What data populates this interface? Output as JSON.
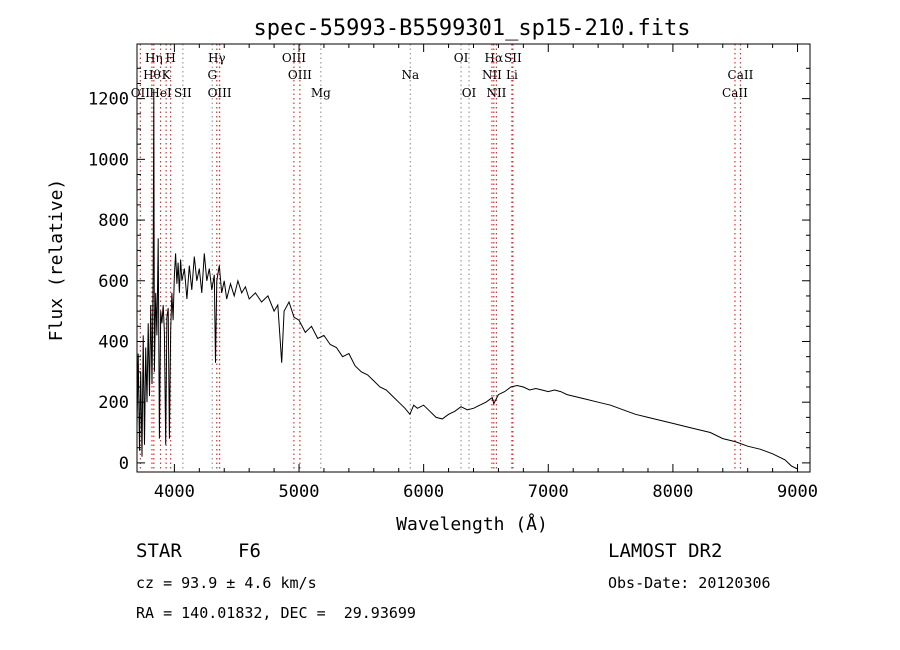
{
  "chart_data": {
    "type": "line",
    "title": "spec-55993-B5599301_sp15-210.fits",
    "xlabel": "Wavelength (Å)",
    "ylabel": "Flux (relative)",
    "xlim": [
      3700,
      9100
    ],
    "ylim": [
      -30,
      1380
    ],
    "x_ticks": [
      4000,
      5000,
      6000,
      7000,
      8000,
      9000
    ],
    "y_ticks": [
      0,
      200,
      400,
      600,
      800,
      1000,
      1200
    ],
    "grid": false,
    "series": [
      {
        "values": [
          {
            "x": 3700,
            "y": 120
          },
          {
            "x": 3710,
            "y": 360
          },
          {
            "x": 3720,
            "y": 40
          },
          {
            "x": 3730,
            "y": 300
          },
          {
            "x": 3740,
            "y": 20
          },
          {
            "x": 3750,
            "y": 420
          },
          {
            "x": 3760,
            "y": 60
          },
          {
            "x": 3770,
            "y": 380
          },
          {
            "x": 3780,
            "y": 200
          },
          {
            "x": 3790,
            "y": 460
          },
          {
            "x": 3800,
            "y": 220
          },
          {
            "x": 3810,
            "y": 520
          },
          {
            "x": 3820,
            "y": 260
          },
          {
            "x": 3830,
            "y": 640
          },
          {
            "x": 3835,
            "y": 1230
          },
          {
            "x": 3840,
            "y": 300
          },
          {
            "x": 3850,
            "y": 560
          },
          {
            "x": 3860,
            "y": 420
          },
          {
            "x": 3870,
            "y": 740
          },
          {
            "x": 3880,
            "y": 80
          },
          {
            "x": 3890,
            "y": 500
          },
          {
            "x": 3900,
            "y": 460
          },
          {
            "x": 3910,
            "y": 520
          },
          {
            "x": 3920,
            "y": 430
          },
          {
            "x": 3930,
            "y": 60
          },
          {
            "x": 3940,
            "y": 480
          },
          {
            "x": 3950,
            "y": 510
          },
          {
            "x": 3960,
            "y": 80
          },
          {
            "x": 3970,
            "y": 440
          },
          {
            "x": 3980,
            "y": 560
          },
          {
            "x": 3990,
            "y": 470
          },
          {
            "x": 4000,
            "y": 620
          },
          {
            "x": 4010,
            "y": 690
          },
          {
            "x": 4020,
            "y": 590
          },
          {
            "x": 4030,
            "y": 660
          },
          {
            "x": 4040,
            "y": 560
          },
          {
            "x": 4050,
            "y": 670
          },
          {
            "x": 4060,
            "y": 600
          },
          {
            "x": 4080,
            "y": 640
          },
          {
            "x": 4100,
            "y": 540
          },
          {
            "x": 4120,
            "y": 650
          },
          {
            "x": 4140,
            "y": 570
          },
          {
            "x": 4160,
            "y": 680
          },
          {
            "x": 4180,
            "y": 600
          },
          {
            "x": 4200,
            "y": 640
          },
          {
            "x": 4220,
            "y": 560
          },
          {
            "x": 4240,
            "y": 690
          },
          {
            "x": 4260,
            "y": 600
          },
          {
            "x": 4280,
            "y": 640
          },
          {
            "x": 4300,
            "y": 570
          },
          {
            "x": 4320,
            "y": 620
          },
          {
            "x": 4330,
            "y": 330
          },
          {
            "x": 4340,
            "y": 600
          },
          {
            "x": 4360,
            "y": 650
          },
          {
            "x": 4380,
            "y": 560
          },
          {
            "x": 4400,
            "y": 600
          },
          {
            "x": 4420,
            "y": 540
          },
          {
            "x": 4450,
            "y": 590
          },
          {
            "x": 4480,
            "y": 550
          },
          {
            "x": 4510,
            "y": 600
          },
          {
            "x": 4540,
            "y": 560
          },
          {
            "x": 4570,
            "y": 580
          },
          {
            "x": 4600,
            "y": 540
          },
          {
            "x": 4650,
            "y": 560
          },
          {
            "x": 4700,
            "y": 530
          },
          {
            "x": 4750,
            "y": 550
          },
          {
            "x": 4800,
            "y": 500
          },
          {
            "x": 4830,
            "y": 520
          },
          {
            "x": 4861,
            "y": 330
          },
          {
            "x": 4880,
            "y": 500
          },
          {
            "x": 4920,
            "y": 530
          },
          {
            "x": 4960,
            "y": 480
          },
          {
            "x": 5000,
            "y": 470
          },
          {
            "x": 5050,
            "y": 430
          },
          {
            "x": 5100,
            "y": 450
          },
          {
            "x": 5150,
            "y": 410
          },
          {
            "x": 5200,
            "y": 420
          },
          {
            "x": 5250,
            "y": 390
          },
          {
            "x": 5300,
            "y": 380
          },
          {
            "x": 5350,
            "y": 350
          },
          {
            "x": 5400,
            "y": 360
          },
          {
            "x": 5450,
            "y": 320
          },
          {
            "x": 5500,
            "y": 300
          },
          {
            "x": 5550,
            "y": 290
          },
          {
            "x": 5600,
            "y": 270
          },
          {
            "x": 5650,
            "y": 250
          },
          {
            "x": 5700,
            "y": 240
          },
          {
            "x": 5750,
            "y": 220
          },
          {
            "x": 5800,
            "y": 200
          },
          {
            "x": 5850,
            "y": 180
          },
          {
            "x": 5890,
            "y": 160
          },
          {
            "x": 5920,
            "y": 190
          },
          {
            "x": 5950,
            "y": 180
          },
          {
            "x": 6000,
            "y": 190
          },
          {
            "x": 6050,
            "y": 170
          },
          {
            "x": 6100,
            "y": 150
          },
          {
            "x": 6150,
            "y": 145
          },
          {
            "x": 6200,
            "y": 160
          },
          {
            "x": 6250,
            "y": 170
          },
          {
            "x": 6300,
            "y": 185
          },
          {
            "x": 6350,
            "y": 175
          },
          {
            "x": 6400,
            "y": 180
          },
          {
            "x": 6450,
            "y": 190
          },
          {
            "x": 6500,
            "y": 200
          },
          {
            "x": 6550,
            "y": 215
          },
          {
            "x": 6563,
            "y": 195
          },
          {
            "x": 6600,
            "y": 225
          },
          {
            "x": 6650,
            "y": 235
          },
          {
            "x": 6700,
            "y": 250
          },
          {
            "x": 6750,
            "y": 255
          },
          {
            "x": 6800,
            "y": 250
          },
          {
            "x": 6850,
            "y": 240
          },
          {
            "x": 6900,
            "y": 245
          },
          {
            "x": 6950,
            "y": 240
          },
          {
            "x": 7000,
            "y": 235
          },
          {
            "x": 7050,
            "y": 240
          },
          {
            "x": 7100,
            "y": 235
          },
          {
            "x": 7150,
            "y": 225
          },
          {
            "x": 7200,
            "y": 220
          },
          {
            "x": 7300,
            "y": 210
          },
          {
            "x": 7400,
            "y": 200
          },
          {
            "x": 7500,
            "y": 190
          },
          {
            "x": 7600,
            "y": 175
          },
          {
            "x": 7700,
            "y": 160
          },
          {
            "x": 7800,
            "y": 150
          },
          {
            "x": 7900,
            "y": 140
          },
          {
            "x": 8000,
            "y": 130
          },
          {
            "x": 8100,
            "y": 120
          },
          {
            "x": 8200,
            "y": 110
          },
          {
            "x": 8300,
            "y": 100
          },
          {
            "x": 8400,
            "y": 80
          },
          {
            "x": 8500,
            "y": 70
          },
          {
            "x": 8600,
            "y": 55
          },
          {
            "x": 8700,
            "y": 45
          },
          {
            "x": 8800,
            "y": 30
          },
          {
            "x": 8900,
            "y": 10
          },
          {
            "x": 8950,
            "y": -10
          },
          {
            "x": 9000,
            "y": -20
          }
        ]
      }
    ],
    "annotations": {
      "red_lines": [
        {
          "label": "Hη",
          "x": 3835,
          "row": 1
        },
        {
          "label": "H",
          "x": 3970,
          "row": 1
        },
        {
          "label": "Hθ",
          "x": 3820,
          "row": 2
        },
        {
          "label": "K",
          "x": 3934,
          "row": 2
        },
        {
          "label": "Hγ",
          "x": 4340,
          "row": 1
        },
        {
          "label": "HeI",
          "x": 3889,
          "row": 3
        },
        {
          "label": "OIII",
          "x": 4363,
          "row": 3
        },
        {
          "label": "OIII",
          "x": 4959,
          "row": 1
        },
        {
          "label": "OIII",
          "x": 5007,
          "row": 2
        },
        {
          "label": "Hα",
          "x": 6563,
          "row": 1
        },
        {
          "label": "NII",
          "x": 6548,
          "row": 2
        },
        {
          "label": "NII",
          "x": 6584,
          "row": 3
        },
        {
          "label": "SII",
          "x": 6716,
          "row": 1
        },
        {
          "label": "Li",
          "x": 6708,
          "row": 2
        },
        {
          "label": "CaII",
          "x": 8542,
          "row": 2
        },
        {
          "label": "CaII",
          "x": 8498,
          "row": 3
        },
        {
          "label": "OII",
          "x": 3727,
          "row": 3
        }
      ],
      "gray_lines": [
        {
          "label": "G",
          "x": 4304,
          "row": 2
        },
        {
          "label": "SII",
          "x": 4068,
          "row": 3
        },
        {
          "label": "Mg",
          "x": 5175,
          "row": 3
        },
        {
          "label": "Na",
          "x": 5893,
          "row": 2
        },
        {
          "label": "OI",
          "x": 6300,
          "row": 1
        },
        {
          "label": "OI",
          "x": 6364,
          "row": 3
        }
      ],
      "colors": {
        "emission": "#e03030",
        "absorption": "#9a9a9a"
      }
    }
  },
  "info": {
    "class_label": "STAR",
    "subclass": "F6",
    "survey": "LAMOST DR2",
    "redshift": "cz = 93.9 ± 4.6 km/s",
    "obs_date": "Obs-Date: 20120306",
    "coords": "RA = 140.01832, DEC =  29.93699"
  }
}
